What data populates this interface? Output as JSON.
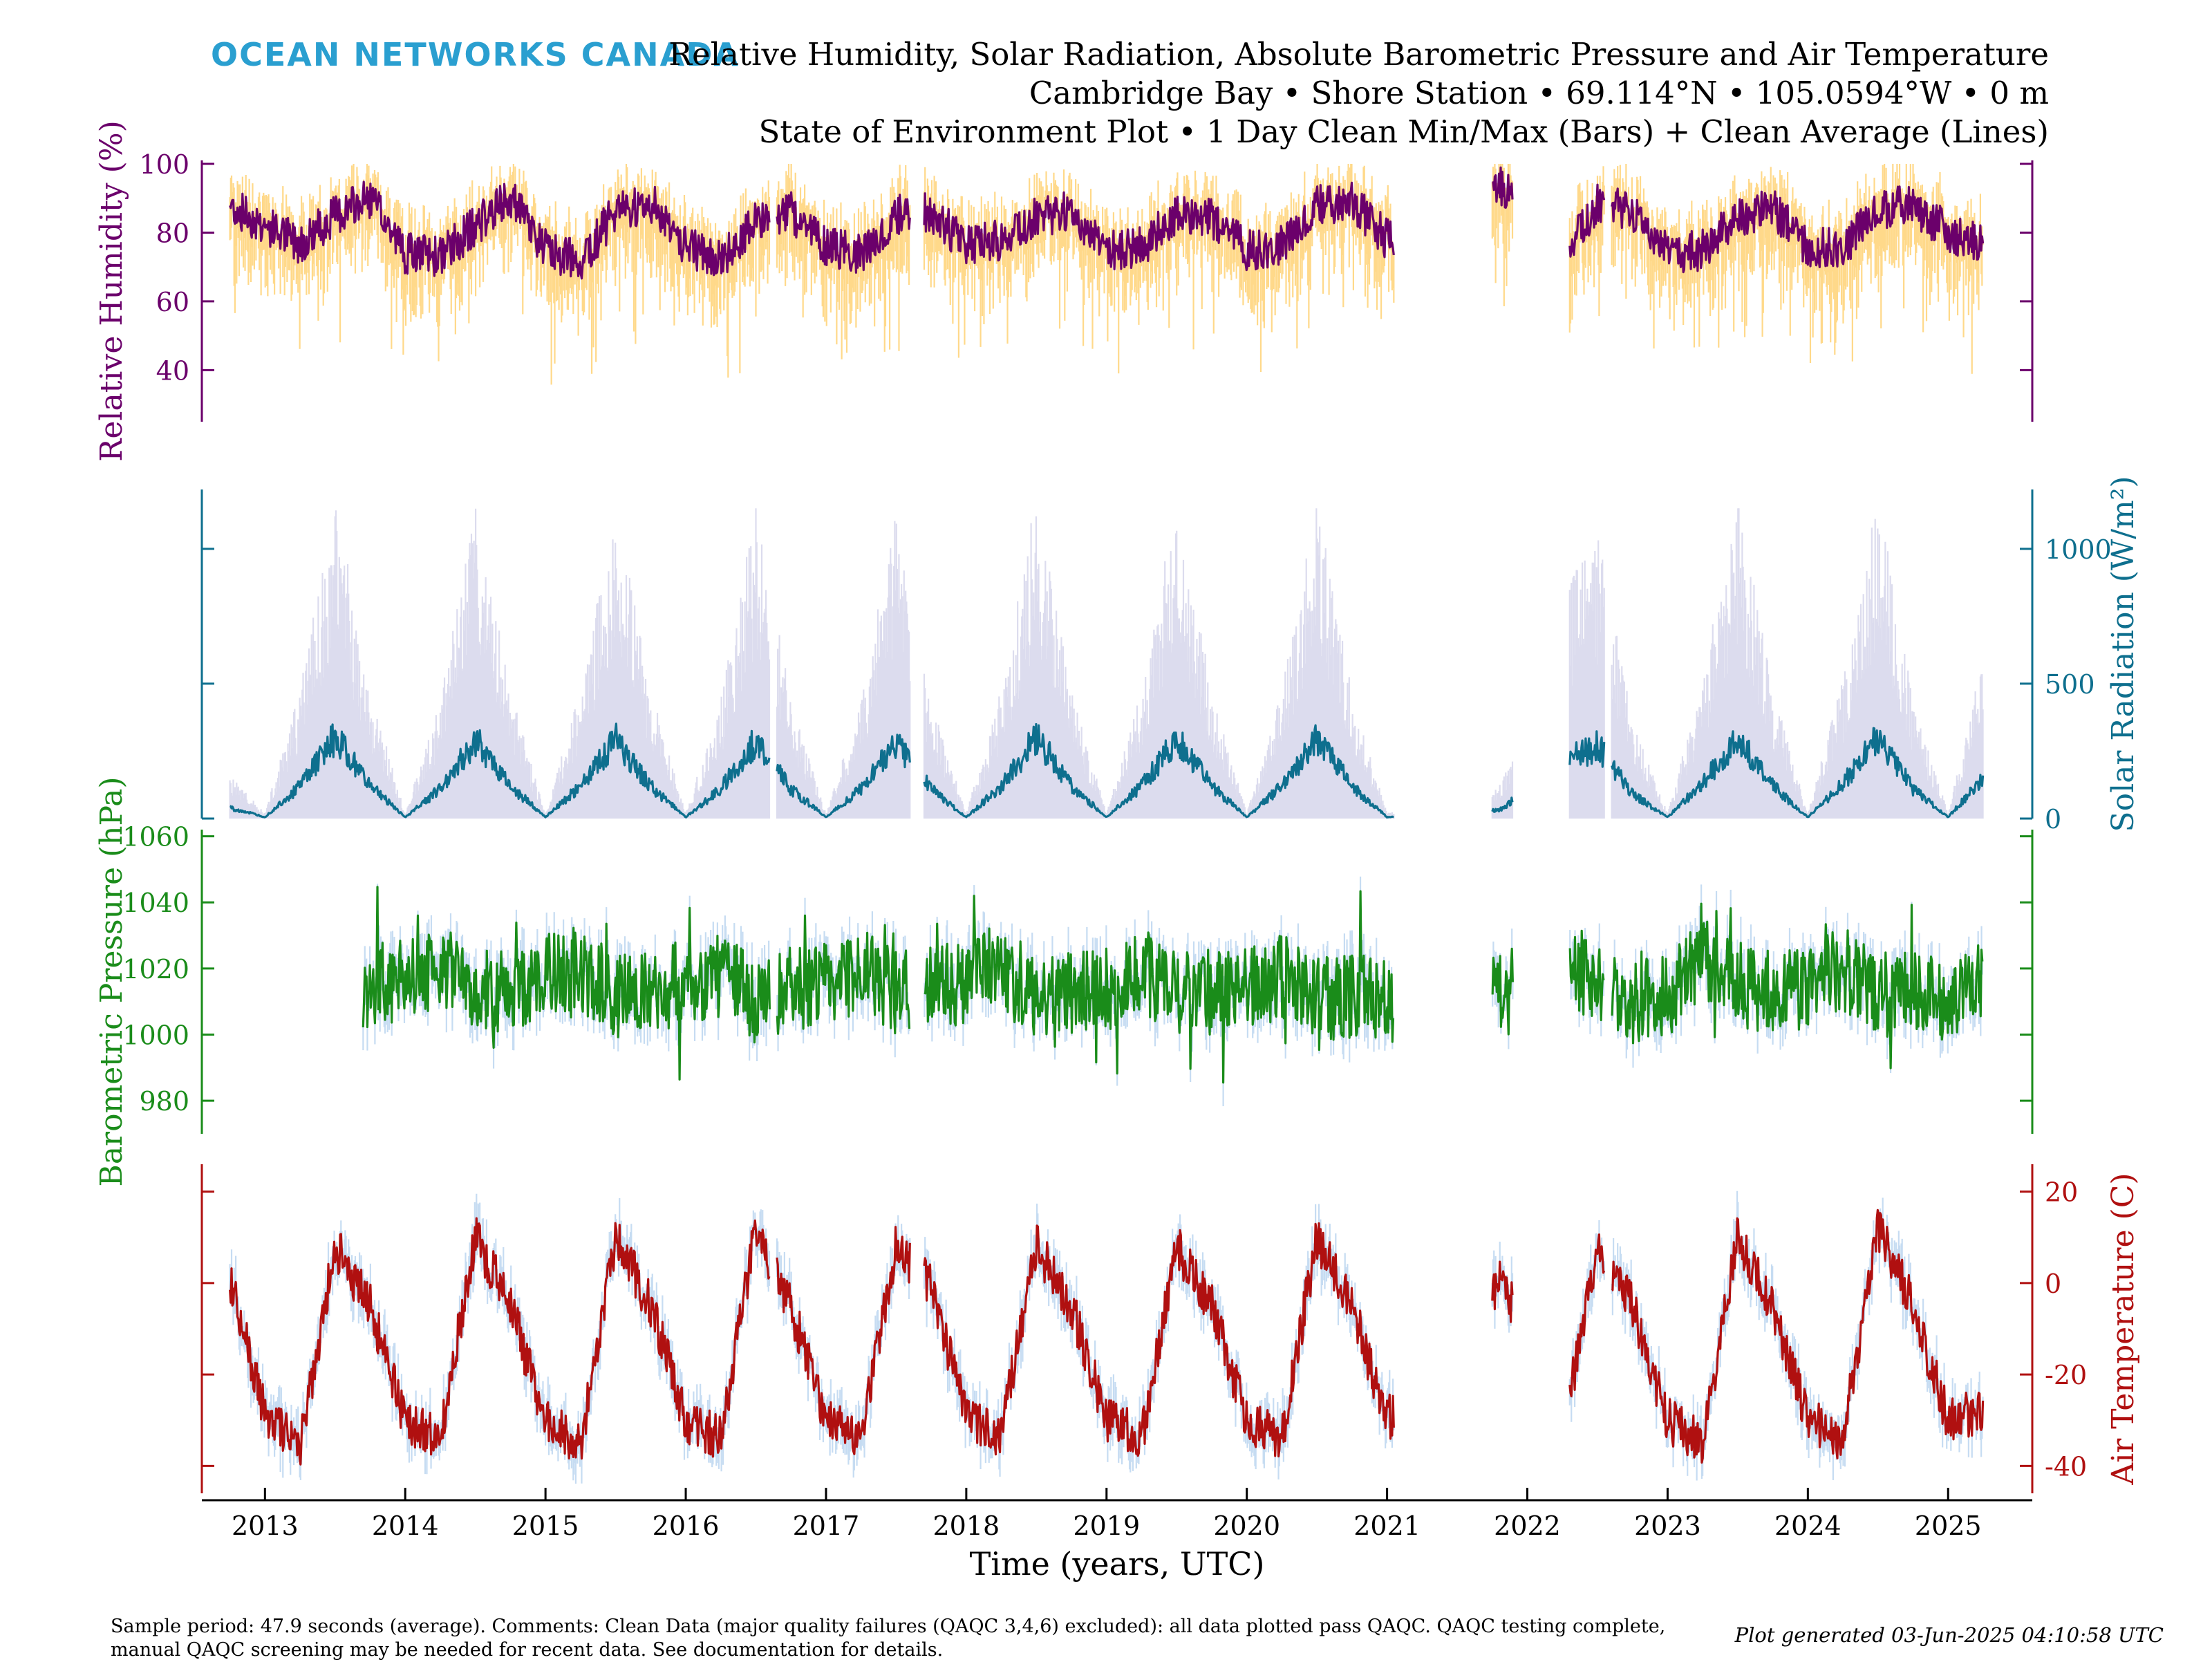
{
  "header": {
    "logo": "OCEAN NETWORKS CANADA",
    "title_line1": "Relative Humidity, Solar Radiation, Absolute Barometric Pressure and Air Temperature",
    "title_line2": "Cambridge Bay • Shore Station • 69.114°N • 105.0594°W • 0 m",
    "title_line3": "State of Environment Plot • 1 Day Clean Min/Max (Bars) + Clean Average (Lines)"
  },
  "footer": {
    "comment_line1": "Sample period: 47.9 seconds (average). Comments: Clean Data (major quality failures (QAQC 3,4,6) excluded): all data plotted pass QAQC. QAQC testing complete,",
    "comment_line2": "manual QAQC screening may be needed for recent data. See documentation for details.",
    "generated": "Plot generated 03-Jun-2025 04:10:58 UTC"
  },
  "chart_data": [
    {
      "type": "line",
      "ylabel": "Relative Humidity (%)",
      "axis_side": "left",
      "line_color": "#6b006b",
      "band_color": "#ffd98a",
      "yticks": [
        40,
        60,
        80,
        100
      ],
      "ylim": [
        25,
        101
      ],
      "xlabel": "Time (years, UTC)",
      "xlim": [
        2012.55,
        2025.6
      ],
      "xticks": [
        "2013",
        "2014",
        "2015",
        "2016",
        "2017",
        "2018",
        "2019",
        "2020",
        "2021",
        "2022",
        "2023",
        "2024",
        "2025"
      ],
      "data_gaps": [
        [
          2016.6,
          2016.65
        ],
        [
          2017.6,
          2017.7
        ],
        [
          2021.05,
          2021.75
        ],
        [
          2021.9,
          2022.3
        ],
        [
          2022.55,
          2022.6
        ]
      ],
      "series": [
        {
          "name": "Clean Average",
          "x": [
            2012.75,
            2013.0,
            2013.25,
            2013.5,
            2013.75,
            2014.0,
            2014.25,
            2014.5,
            2014.75,
            2015.0,
            2015.25,
            2015.5,
            2015.75,
            2016.0,
            2016.25,
            2016.5,
            2016.75,
            2017.0,
            2017.25,
            2017.5,
            2017.75,
            2018.0,
            2018.25,
            2018.5,
            2018.75,
            2019.0,
            2019.25,
            2019.5,
            2019.75,
            2020.0,
            2020.25,
            2020.5,
            2020.75,
            2021.0,
            2021.8,
            2022.3,
            2022.5,
            2022.75,
            2023.0,
            2023.25,
            2023.5,
            2023.75,
            2024.0,
            2024.25,
            2024.5,
            2024.75,
            2025.0,
            2025.25
          ],
          "values": [
            88,
            82,
            77,
            85,
            90,
            74,
            73,
            82,
            90,
            75,
            72,
            86,
            89,
            76,
            72,
            84,
            86,
            76,
            74,
            85,
            86,
            76,
            78,
            85,
            86,
            75,
            76,
            85,
            84,
            75,
            76,
            88,
            89,
            78,
            94,
            76,
            88,
            86,
            74,
            75,
            85,
            87,
            76,
            75,
            87,
            88,
            80,
            76
          ]
        }
      ]
    },
    {
      "type": "line",
      "ylabel": "Solar Radiation (W/m²)",
      "axis_side": "right",
      "line_color": "#0e6f8e",
      "band_color": "#dcdcee",
      "yticks": [
        0,
        500,
        1000
      ],
      "ylim": [
        0,
        1220
      ],
      "series": [
        {
          "name": "Clean Average",
          "x": [
            2012.75,
            2013.0,
            2013.25,
            2013.5,
            2013.75,
            2014.0,
            2014.25,
            2014.5,
            2014.75,
            2015.0,
            2015.25,
            2015.5,
            2015.75,
            2016.0,
            2016.25,
            2016.5,
            2016.75,
            2017.0,
            2017.25,
            2017.5,
            2017.75,
            2018.0,
            2018.25,
            2018.5,
            2018.75,
            2019.0,
            2019.25,
            2019.5,
            2019.75,
            2020.0,
            2020.25,
            2020.5,
            2020.75,
            2021.0,
            2021.8,
            2022.3,
            2022.5,
            2022.75,
            2023.0,
            2023.25,
            2023.5,
            2023.75,
            2024.0,
            2024.25,
            2024.5,
            2024.75,
            2025.0,
            2025.25
          ],
          "values": [
            40,
            5,
            120,
            300,
            120,
            5,
            110,
            290,
            120,
            5,
            120,
            290,
            120,
            5,
            110,
            290,
            110,
            5,
            110,
            290,
            110,
            5,
            120,
            300,
            120,
            5,
            120,
            300,
            120,
            5,
            120,
            300,
            120,
            5,
            30,
            220,
            270,
            90,
            5,
            130,
            300,
            120,
            5,
            130,
            300,
            110,
            5,
            150
          ]
        }
      ],
      "max_envelope_peak": 1150
    },
    {
      "type": "line",
      "ylabel": "Barometric Pressure (hPa)",
      "axis_side": "left",
      "line_color": "#1a8c1a",
      "band_color": "#c6dcf2",
      "yticks": [
        980,
        1000,
        1020,
        1040,
        1060
      ],
      "ylim": [
        970,
        1062
      ],
      "series": [
        {
          "name": "Clean Average",
          "x": [
            2013.7,
            2014.0,
            2014.25,
            2014.5,
            2014.75,
            2015.0,
            2015.25,
            2015.5,
            2015.75,
            2016.0,
            2016.25,
            2016.5,
            2016.75,
            2017.0,
            2017.25,
            2017.5,
            2017.75,
            2018.0,
            2018.25,
            2018.5,
            2018.75,
            2019.0,
            2019.25,
            2019.5,
            2019.75,
            2020.0,
            2020.25,
            2020.5,
            2020.75,
            2021.0,
            2021.8,
            2022.3,
            2022.5,
            2022.75,
            2023.0,
            2023.25,
            2023.5,
            2023.75,
            2024.0,
            2024.25,
            2024.5,
            2024.75,
            2025.0,
            2025.25
          ],
          "values": [
            1015,
            1016,
            1022,
            1012,
            1014,
            1018,
            1020,
            1012,
            1013,
            1016,
            1018,
            1010,
            1014,
            1015,
            1020,
            1012,
            1015,
            1016,
            1022,
            1010,
            1012,
            1014,
            1020,
            1012,
            1013,
            1014,
            1018,
            1010,
            1012,
            1010,
            1012,
            1020,
            1018,
            1010,
            1012,
            1022,
            1015,
            1012,
            1014,
            1020,
            1012,
            1012,
            1010,
            1016
          ]
        }
      ]
    },
    {
      "type": "line",
      "ylabel": "Air Temperature (C)",
      "axis_side": "right",
      "line_color": "#b01010",
      "band_color": "#c6dcf2",
      "yticks": [
        -40,
        -20,
        0,
        20
      ],
      "ylim": [
        -46,
        26
      ],
      "series": [
        {
          "name": "Clean Average",
          "x": [
            2012.75,
            2013.0,
            2013.25,
            2013.5,
            2013.75,
            2014.0,
            2014.25,
            2014.5,
            2014.75,
            2015.0,
            2015.25,
            2015.5,
            2015.75,
            2016.0,
            2016.25,
            2016.5,
            2016.75,
            2017.0,
            2017.25,
            2017.5,
            2017.75,
            2018.0,
            2018.25,
            2018.5,
            2018.75,
            2019.0,
            2019.25,
            2019.5,
            2019.75,
            2020.0,
            2020.25,
            2020.5,
            2020.75,
            2021.0,
            2021.8,
            2022.3,
            2022.5,
            2022.75,
            2023.0,
            2023.25,
            2023.5,
            2023.75,
            2024.0,
            2024.25,
            2024.5,
            2024.75,
            2025.0,
            2025.25
          ],
          "values": [
            0,
            -28,
            -36,
            8,
            -5,
            -30,
            -34,
            10,
            -5,
            -30,
            -35,
            10,
            -5,
            -30,
            -34,
            12,
            -5,
            -30,
            -33,
            8,
            0,
            -30,
            -33,
            8,
            -5,
            -30,
            -34,
            8,
            -5,
            -30,
            -34,
            10,
            -5,
            -30,
            0,
            -25,
            8,
            -5,
            -30,
            -35,
            10,
            -5,
            -30,
            -34,
            12,
            -5,
            -30,
            -28
          ]
        }
      ]
    }
  ]
}
